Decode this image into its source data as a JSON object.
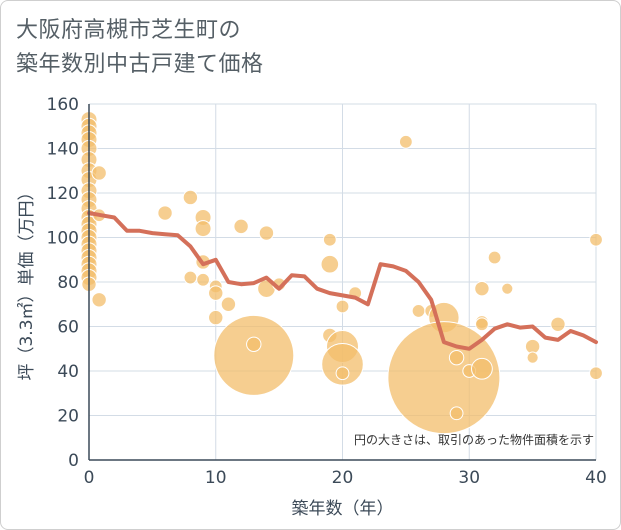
{
  "title_lines": [
    "大阪府高槻市芝生町の",
    "築年数別中古戸建て価格"
  ],
  "colors": {
    "bubble": "#f3bd6b",
    "bubble_stroke": "#ffffff",
    "line": "#d4705a",
    "grid": "#d3dce6",
    "axis": "#3c4a58"
  },
  "chart_data": {
    "type": "scatter",
    "title": "大阪府高槻市芝生町の築年数別中古戸建て価格",
    "xlabel": "築年数（年）",
    "ylabel": "坪（3.3㎡）単価（万円）",
    "xlim": [
      0,
      40
    ],
    "ylim": [
      0,
      160
    ],
    "xticks": [
      "0",
      "10",
      "20",
      "30",
      "40"
    ],
    "yticks": [
      "0",
      "20",
      "40",
      "60",
      "80",
      "100",
      "120",
      "140",
      "160"
    ],
    "grid": true,
    "annotation": "円の大きさは、取引のあった物件面積を示す",
    "bubbles": [
      {
        "x": 0,
        "y": 153,
        "s": 1.0
      },
      {
        "x": 0,
        "y": 150,
        "s": 1.0
      },
      {
        "x": 0,
        "y": 147,
        "s": 1.0
      },
      {
        "x": 0,
        "y": 144,
        "s": 1.0
      },
      {
        "x": 0,
        "y": 140,
        "s": 1.0
      },
      {
        "x": 0,
        "y": 135,
        "s": 1.0
      },
      {
        "x": 0,
        "y": 130,
        "s": 1.0
      },
      {
        "x": 0,
        "y": 126,
        "s": 1.0
      },
      {
        "x": 0,
        "y": 121,
        "s": 1.0
      },
      {
        "x": 0,
        "y": 117,
        "s": 1.0
      },
      {
        "x": 0,
        "y": 113,
        "s": 1.0
      },
      {
        "x": 0,
        "y": 109,
        "s": 1.0
      },
      {
        "x": 0,
        "y": 106,
        "s": 1.0
      },
      {
        "x": 0,
        "y": 103,
        "s": 1.0
      },
      {
        "x": 0,
        "y": 100,
        "s": 1.0
      },
      {
        "x": 0,
        "y": 97,
        "s": 1.0
      },
      {
        "x": 0,
        "y": 94,
        "s": 1.0
      },
      {
        "x": 0,
        "y": 91,
        "s": 1.0
      },
      {
        "x": 0,
        "y": 88,
        "s": 1.0
      },
      {
        "x": 0,
        "y": 85,
        "s": 1.0
      },
      {
        "x": 0,
        "y": 82,
        "s": 1.0
      },
      {
        "x": 0,
        "y": 79,
        "s": 0.9
      },
      {
        "x": 0.8,
        "y": 129,
        "s": 0.9
      },
      {
        "x": 0.8,
        "y": 110,
        "s": 0.8
      },
      {
        "x": 0.8,
        "y": 72,
        "s": 0.9
      },
      {
        "x": 6,
        "y": 111,
        "s": 0.9
      },
      {
        "x": 8,
        "y": 118,
        "s": 0.9
      },
      {
        "x": 8,
        "y": 82,
        "s": 0.8
      },
      {
        "x": 9,
        "y": 109,
        "s": 1.0
      },
      {
        "x": 9,
        "y": 104,
        "s": 1.0
      },
      {
        "x": 9,
        "y": 89,
        "s": 0.9
      },
      {
        "x": 9,
        "y": 81,
        "s": 0.8
      },
      {
        "x": 10,
        "y": 78,
        "s": 0.8
      },
      {
        "x": 10,
        "y": 75,
        "s": 0.9
      },
      {
        "x": 10,
        "y": 64,
        "s": 0.9
      },
      {
        "x": 11,
        "y": 70,
        "s": 0.9
      },
      {
        "x": 12,
        "y": 105,
        "s": 0.9
      },
      {
        "x": 13,
        "y": 47,
        "s": 5.0
      },
      {
        "x": 13,
        "y": 52,
        "s": 0.9
      },
      {
        "x": 14,
        "y": 102,
        "s": 0.9
      },
      {
        "x": 14,
        "y": 77,
        "s": 1.1
      },
      {
        "x": 15,
        "y": 79,
        "s": 0.8
      },
      {
        "x": 19,
        "y": 99,
        "s": 0.8
      },
      {
        "x": 19,
        "y": 88,
        "s": 1.1
      },
      {
        "x": 19,
        "y": 56,
        "s": 0.9
      },
      {
        "x": 20,
        "y": 69,
        "s": 0.8
      },
      {
        "x": 20,
        "y": 51,
        "s": 2.0
      },
      {
        "x": 20,
        "y": 43,
        "s": 2.6
      },
      {
        "x": 20,
        "y": 39,
        "s": 0.8
      },
      {
        "x": 21,
        "y": 75,
        "s": 0.8
      },
      {
        "x": 25,
        "y": 143,
        "s": 0.8
      },
      {
        "x": 26,
        "y": 67,
        "s": 0.8
      },
      {
        "x": 27,
        "y": 67,
        "s": 0.8
      },
      {
        "x": 28,
        "y": 64,
        "s": 1.9
      },
      {
        "x": 28,
        "y": 37,
        "s": 7.0
      },
      {
        "x": 29,
        "y": 46,
        "s": 0.9
      },
      {
        "x": 29,
        "y": 21,
        "s": 0.8
      },
      {
        "x": 30,
        "y": 40,
        "s": 0.8
      },
      {
        "x": 31,
        "y": 77,
        "s": 0.9
      },
      {
        "x": 31,
        "y": 62,
        "s": 0.8
      },
      {
        "x": 31,
        "y": 61,
        "s": 0.8
      },
      {
        "x": 31,
        "y": 41,
        "s": 1.3
      },
      {
        "x": 32,
        "y": 91,
        "s": 0.8
      },
      {
        "x": 33,
        "y": 77,
        "s": 0.7
      },
      {
        "x": 35,
        "y": 51,
        "s": 0.9
      },
      {
        "x": 35,
        "y": 46,
        "s": 0.7
      },
      {
        "x": 37,
        "y": 61,
        "s": 0.9
      },
      {
        "x": 40,
        "y": 99,
        "s": 0.8
      },
      {
        "x": 40,
        "y": 39,
        "s": 0.8
      }
    ],
    "series": [
      {
        "x": [
          0,
          1,
          2,
          3,
          4,
          5,
          6,
          7,
          8,
          9,
          10,
          11,
          12,
          13,
          14,
          15,
          16,
          17,
          18,
          19,
          20,
          21,
          22,
          23,
          24,
          25,
          26,
          27,
          28,
          29,
          30,
          31,
          32,
          33,
          34,
          35,
          36,
          37,
          38,
          39,
          40
        ],
        "values": [
          111,
          110,
          109,
          103,
          103,
          102,
          101.5,
          101,
          96,
          88,
          90,
          80,
          79,
          79.5,
          82,
          77,
          83,
          82.5,
          77,
          75,
          74,
          73,
          70,
          88,
          87,
          85,
          80,
          72,
          53,
          51,
          50,
          54,
          59,
          61,
          59.5,
          60,
          55,
          54,
          58,
          56,
          53
        ]
      }
    ]
  }
}
